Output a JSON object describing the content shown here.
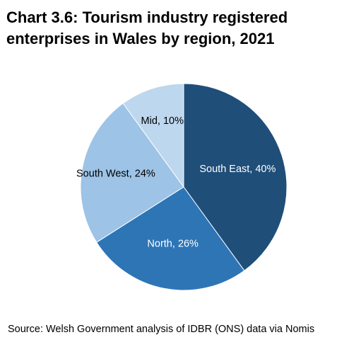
{
  "title": "Chart 3.6: Tourism industry registered enterprises in Wales by region, 2021",
  "source": "Source: Welsh Government analysis of IDBR (ONS) data via Nomis",
  "chart_data": {
    "type": "pie",
    "title": "Chart 3.6: Tourism industry registered enterprises in Wales by region, 2021",
    "unit": "%",
    "slices": [
      {
        "label": "South East, 40%",
        "name": "South East",
        "value": 40,
        "color": "#1f4e79",
        "label_color": "#ffffff"
      },
      {
        "label": "North, 26%",
        "name": "North",
        "value": 26,
        "color": "#2e75b6",
        "label_color": "#ffffff"
      },
      {
        "label": "South West, 24%",
        "name": "South West",
        "value": 24,
        "color": "#9dc3e6",
        "label_color": "#000000"
      },
      {
        "label": "Mid, 10%",
        "name": "Mid",
        "value": 10,
        "color": "#bdd7ee",
        "label_color": "#000000"
      }
    ],
    "start": "12 o'clock",
    "direction": "clockwise"
  }
}
